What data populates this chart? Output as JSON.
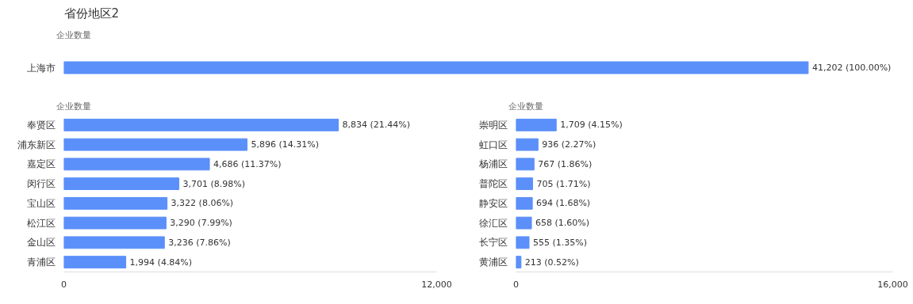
{
  "chart_data": [
    {
      "type": "bar",
      "orientation": "horizontal",
      "title": "省份地区2",
      "xlabel": "企业数量",
      "categories": [
        "上海市"
      ],
      "values": [
        41202
      ],
      "value_labels": [
        "41,202 (100.00%)"
      ],
      "color": "#5b8ff9",
      "grid": false,
      "tick_labels": "y"
    },
    {
      "type": "bar",
      "orientation": "horizontal",
      "xlabel": "企业数量",
      "categories": [
        "奉贤区",
        "浦东新区",
        "嘉定区",
        "闵行区",
        "宝山区",
        "松江区",
        "金山区",
        "青浦区"
      ],
      "values": [
        8834,
        5896,
        4686,
        3701,
        3322,
        3290,
        3236,
        1994
      ],
      "value_labels": [
        "8,834 (21.44%)",
        "5,896 (14.31%)",
        "4,686 (11.37%)",
        "3,701 (8.98%)",
        "3,322 (8.06%)",
        "3,290 (7.99%)",
        "3,236 (7.86%)",
        "1,994 (4.84%)"
      ],
      "color": "#5b8ff9",
      "xlim": [
        0,
        12000
      ],
      "xticks": [
        0,
        {
          "value": 12000,
          "label": "12,000"
        }
      ],
      "grid": false
    },
    {
      "type": "bar",
      "orientation": "horizontal",
      "xlabel": "企业数量",
      "categories": [
        "崇明区",
        "虹口区",
        "杨浦区",
        "普陀区",
        "静安区",
        "徐汇区",
        "长宁区",
        "黄浦区"
      ],
      "values": [
        1709,
        936,
        767,
        705,
        694,
        658,
        555,
        213
      ],
      "value_labels": [
        "1,709 (4.15%)",
        "936 (2.27%)",
        "767 (1.86%)",
        "705 (1.71%)",
        "694 (1.68%)",
        "658 (1.60%)",
        "555 (1.35%)",
        "213 (0.52%)"
      ],
      "color": "#5b8ff9",
      "xlim": [
        0,
        16000
      ],
      "xticks": [
        0,
        {
          "value": 16000,
          "label": "16,000"
        }
      ],
      "grid": false
    }
  ]
}
